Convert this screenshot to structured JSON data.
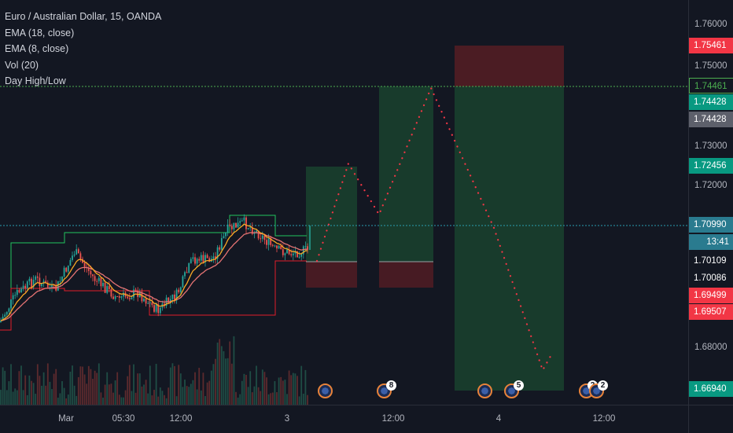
{
  "legend": {
    "symbol": "Euro / Australian Dollar, 15, OANDA",
    "ema18": "EMA (18, close)",
    "ema8": "EMA (8, close)",
    "vol": "Vol (20)",
    "dayhl": "Day High/Low"
  },
  "price_axis": {
    "ticks": [
      "1.76000",
      "1.75000",
      "1.73000",
      "1.72000",
      "1.68000"
    ],
    "tags": [
      {
        "label": "1.75461",
        "color": "#f23645"
      },
      {
        "label": "1.74461",
        "color": "#131722",
        "text_color": "#4caf50",
        "border": "#4caf50"
      },
      {
        "label": "1.74428",
        "color": "#089981"
      },
      {
        "label": "1.74428",
        "color": "#5d606b"
      },
      {
        "label": "1.72456",
        "color": "#089981"
      },
      {
        "label": "1.70990",
        "color": "#2a7b8f"
      },
      {
        "label": "13:41",
        "color": "#2a7b8f"
      },
      {
        "label": "1.70109",
        "color": "#131722"
      },
      {
        "label": "1.70086",
        "color": "#131722"
      },
      {
        "label": "1.69499",
        "color": "#f23645"
      },
      {
        "label": "1.69507",
        "color": "#f23645"
      },
      {
        "label": "1.66940",
        "color": "#089981"
      }
    ]
  },
  "time_axis": {
    "labels": [
      "Mar",
      "05:30",
      "12:00",
      "3",
      "12:00",
      "4",
      "12:00"
    ]
  },
  "events": [
    {
      "icon": "australia-flag-icon",
      "badge": ""
    },
    {
      "icon": "australia-flag-icon",
      "badge": "8"
    },
    {
      "icon": "australia-flag-icon",
      "badge": ""
    },
    {
      "icon": "australia-flag-icon",
      "badge": "5"
    },
    {
      "icon": "australia-flag-icon",
      "badge": "2"
    },
    {
      "icon": "australia-flag-icon",
      "badge": "2"
    }
  ],
  "colors": {
    "up": "#26a69a",
    "down": "#ef5350",
    "ema_fast": "#f9a825",
    "ema_slow": "#e57373",
    "day_high": "#22c55e",
    "day_low": "#e11d2a",
    "projection": "#f23645"
  }
}
